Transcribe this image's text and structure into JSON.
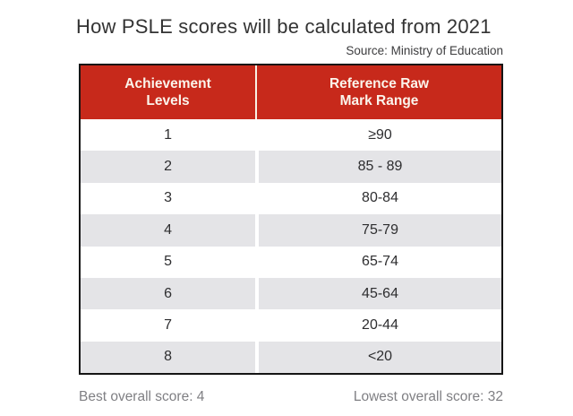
{
  "page": {
    "title": "How PSLE scores will be calculated from 2021",
    "source": "Source: Ministry of Education"
  },
  "table": {
    "headers": {
      "levels": "Achievement\nLevels",
      "range": "Reference Raw\nMark Range"
    },
    "rows": [
      {
        "level": "1",
        "range": "≥90"
      },
      {
        "level": "2",
        "range": "85 - 89"
      },
      {
        "level": "3",
        "range": "80-84"
      },
      {
        "level": "4",
        "range": "75-79"
      },
      {
        "level": "5",
        "range": "65-74"
      },
      {
        "level": "6",
        "range": "45-64"
      },
      {
        "level": "7",
        "range": "20-44"
      },
      {
        "level": "8",
        "range": "<20"
      }
    ]
  },
  "notes": {
    "best": "Best overall score: 4",
    "lowest": "Lowest overall score: 32"
  },
  "colors": {
    "header_bg": "#C7291B",
    "header_text": "#FBF5EC",
    "row_alt_bg": "#E4E4E7",
    "table_border": "#151515",
    "title_text": "#333333",
    "note_text": "#7f7f83"
  },
  "chart_data": {
    "type": "table",
    "title": "How PSLE scores will be calculated from 2021",
    "source": "Source: Ministry of Education",
    "columns": [
      "Achievement Levels",
      "Reference Raw Mark Range"
    ],
    "rows": [
      [
        "1",
        "≥90"
      ],
      [
        "2",
        "85 - 89"
      ],
      [
        "3",
        "80-84"
      ],
      [
        "4",
        "75-79"
      ],
      [
        "5",
        "65-74"
      ],
      [
        "6",
        "45-64"
      ],
      [
        "7",
        "20-44"
      ],
      [
        "8",
        "<20"
      ]
    ],
    "annotations": [
      "Best overall score: 4",
      "Lowest overall score: 32"
    ],
    "layout": {
      "header_style": "red-band",
      "row_striping": "alternate-gray",
      "source_position": "top-right"
    }
  }
}
